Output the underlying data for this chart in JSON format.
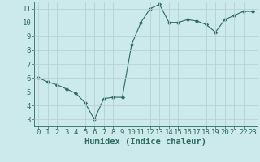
{
  "x": [
    0,
    1,
    2,
    3,
    4,
    5,
    6,
    7,
    8,
    9,
    10,
    11,
    12,
    13,
    14,
    15,
    16,
    17,
    18,
    19,
    20,
    21,
    22,
    23
  ],
  "y": [
    6.0,
    5.7,
    5.5,
    5.2,
    4.9,
    4.2,
    3.0,
    4.5,
    4.6,
    4.6,
    8.4,
    10.0,
    11.0,
    11.3,
    10.0,
    10.0,
    10.2,
    10.1,
    9.85,
    9.3,
    10.2,
    10.5,
    10.8,
    10.8
  ],
  "line_color": "#2d6b5e",
  "marker": "D",
  "marker_size": 2.2,
  "bg_color": "#cce9ec",
  "grid_color": "#b8d0d4",
  "xlabel": "Humidex (Indice chaleur)",
  "xlabel_color": "#2d6b5e",
  "tick_color": "#2d6b5e",
  "xlim": [
    -0.5,
    23.5
  ],
  "ylim": [
    2.5,
    11.5
  ],
  "yticks": [
    3,
    4,
    5,
    6,
    7,
    8,
    9,
    10,
    11
  ],
  "xticks": [
    0,
    1,
    2,
    3,
    4,
    5,
    6,
    7,
    8,
    9,
    10,
    11,
    12,
    13,
    14,
    15,
    16,
    17,
    18,
    19,
    20,
    21,
    22,
    23
  ],
  "tick_fontsize": 6.5,
  "xlabel_fontsize": 7.5
}
